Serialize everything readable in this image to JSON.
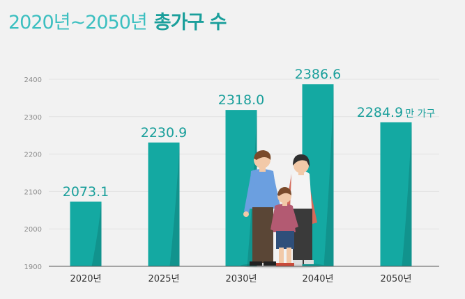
{
  "title": {
    "prefix": "2020년~2050년",
    "main": "총가구 수"
  },
  "colors": {
    "bar": "#14a9a2",
    "bar_dark": "#0f8a85",
    "label": "#1a9f9b",
    "grid": "#e2e2e2"
  },
  "chart_data": {
    "type": "bar",
    "categories": [
      "2020년",
      "2025년",
      "2030년",
      "2040년",
      "2050년"
    ],
    "values": [
      2073.1,
      2230.9,
      2318.0,
      2386.6,
      2284.9
    ],
    "value_labels": [
      "2073.1",
      "2230.9",
      "2318.0",
      "2386.6",
      "2284.9"
    ],
    "unit": "만 가구",
    "ylim": [
      1900,
      2400
    ],
    "yticks": [
      1900,
      2000,
      2100,
      2200,
      2300,
      2400
    ],
    "grid": true
  }
}
